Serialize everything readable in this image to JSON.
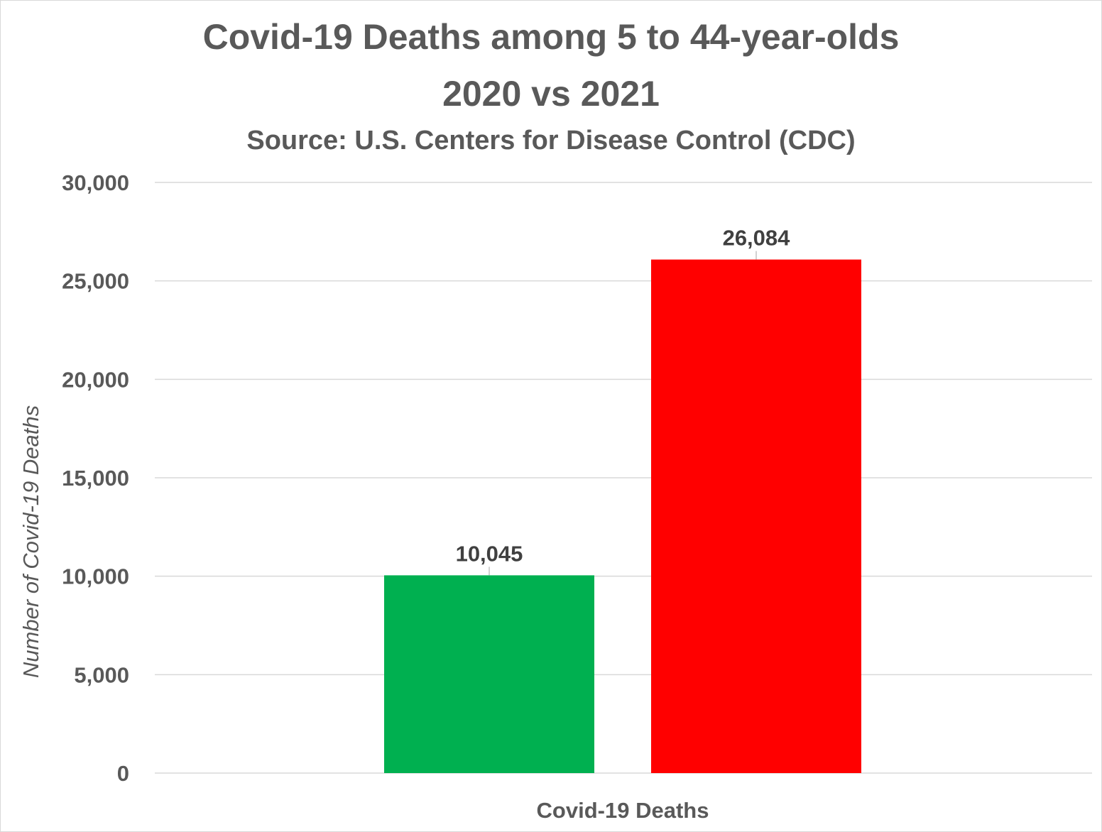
{
  "chart_data": {
    "type": "bar",
    "title_lines": [
      "Covid-19 Deaths among 5 to 44-year-olds",
      "2020 vs 2021"
    ],
    "subtitle": "Source: U.S. Centers for Disease Control (CDC)",
    "ylabel": "Number of Covid-19 Deaths",
    "categories": [
      "Covid-19 Deaths"
    ],
    "series": [
      {
        "values": [
          10045
        ],
        "color": "#00b050"
      },
      {
        "values": [
          26084
        ],
        "color": "#ff0000"
      }
    ],
    "data_labels": [
      "10,045",
      "26,084"
    ],
    "ylim": [
      0,
      30000
    ],
    "yticks": [
      0,
      5000,
      10000,
      15000,
      20000,
      25000,
      30000
    ],
    "ytick_labels": [
      "0",
      "5,000",
      "10,000",
      "15,000",
      "20,000",
      "25,000",
      "30,000"
    ],
    "grid": true,
    "legend": "none"
  }
}
